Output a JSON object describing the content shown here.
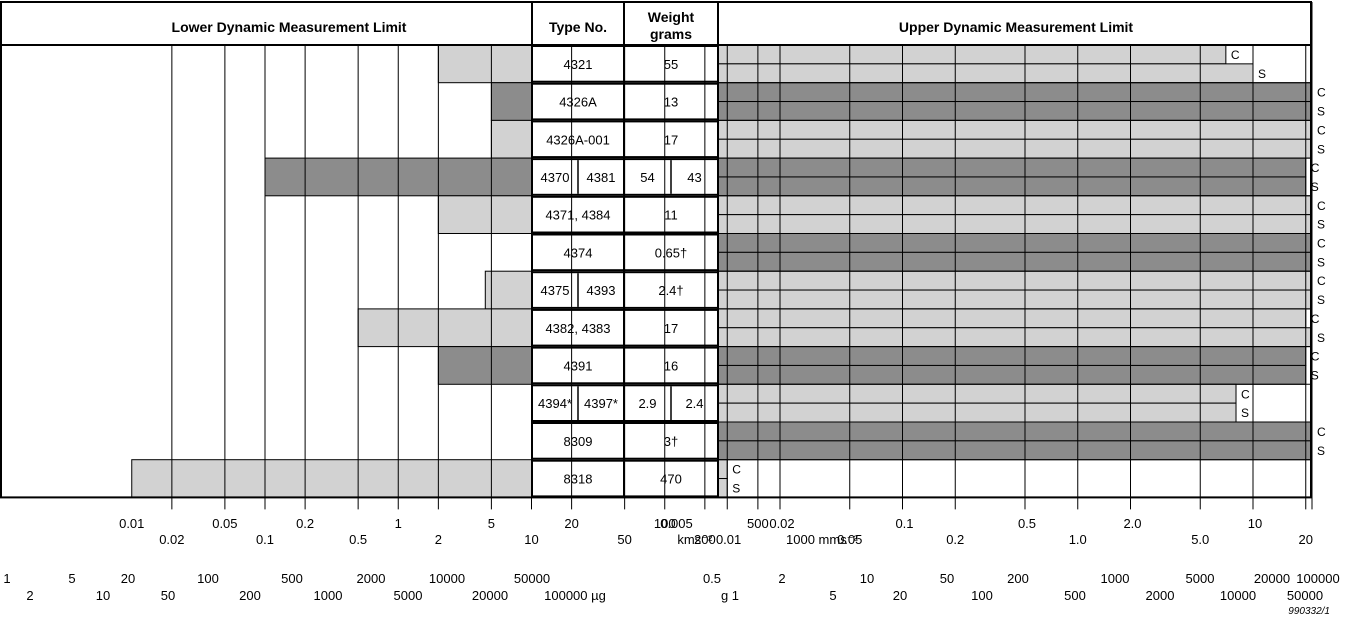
{
  "headers": {
    "lower": "Lower Dynamic Measurement Limit",
    "type": "Type No.",
    "weight_line1": "Weight",
    "weight_line2": "grams",
    "upper": "Upper Dynamic Measurement Limit"
  },
  "colors": {
    "light": "#d2d2d2",
    "dark": "#8c8c8c",
    "line": "#000000"
  },
  "chart_data": {
    "type": "bar",
    "lower_axis": {
      "scale": "log",
      "range": [
        0.01,
        1000
      ],
      "unit": "mms⁻²",
      "ticks_row1": [
        "0.01",
        "0.05",
        "0.1",
        "0.2",
        "0.5",
        "1",
        "2",
        "5",
        "10",
        "20",
        "50",
        "100",
        "200",
        "500",
        "1000 mms⁻²"
      ],
      "ticks_row1_values": [
        0.01,
        0.05,
        0.1,
        0.2,
        0.5,
        1,
        2,
        5,
        10,
        20,
        50,
        100,
        200,
        500,
        1000
      ],
      "ticks_row1_below": [
        false,
        false,
        true,
        false,
        true,
        false,
        true,
        false,
        true,
        false,
        true,
        false,
        true,
        false,
        true
      ],
      "ticks_row1_note": "",
      "ticks_top_labels": [
        "0.01",
        "0.05",
        "0.2",
        "1",
        "5",
        "20",
        "100",
        "500"
      ],
      "ticks_bottom_labels": [
        "0.02",
        "0.1",
        "0.5",
        "2",
        "10",
        "50",
        "200",
        "1000 mms⁻²"
      ],
      "g_top_labels": [
        "1",
        "5",
        "20",
        "100",
        "500",
        "2000",
        "10000",
        "50000"
      ],
      "g_bottom_labels": [
        "2",
        "10",
        "50",
        "200",
        "1000",
        "5000",
        "20000",
        "100000 µg"
      ]
    },
    "upper_axis": {
      "scale": "log",
      "range": [
        0.005,
        1000
      ],
      "unit": "kms⁻²",
      "ticks_top_labels": [
        "0.005",
        "0.02",
        "0.1",
        "0.5",
        "2.0",
        "10",
        "50",
        "200",
        "1000"
      ],
      "ticks_bottom_labels": [
        "kms⁻² 0.01",
        "0.05",
        "0.2",
        "1.0",
        "5.0",
        "20",
        "100",
        "500"
      ],
      "g_top_labels": [
        "0.5",
        "2",
        "10",
        "50",
        "200",
        "1000",
        "5000",
        "20000",
        "100000"
      ],
      "g_bottom_labels": [
        "g  1",
        "5",
        "20",
        "100",
        "500",
        "2000",
        "10000",
        "50000"
      ]
    },
    "figure_code": "990332/1",
    "rows": [
      {
        "type": [
          "4321"
        ],
        "weight": [
          "55"
        ],
        "shade": "light",
        "lower_limit": 2,
        "upper_c": 7,
        "upper_s": 10
      },
      {
        "type": [
          "4326A"
        ],
        "weight": [
          "13"
        ],
        "shade": "dark",
        "lower_limit": 5,
        "upper_c": 50,
        "upper_s": 200
      },
      {
        "type": [
          "4326A-001"
        ],
        "weight": [
          "17"
        ],
        "shade": "light",
        "lower_limit": 5,
        "upper_c": 50,
        "upper_s": 200
      },
      {
        "type": [
          "4370",
          "4381"
        ],
        "weight": [
          "54",
          "43"
        ],
        "shade": "dark",
        "lower_limit": 0.1,
        "upper_c": 20,
        "upper_s": 20
      },
      {
        "type": [
          "4371, 4384"
        ],
        "weight": [
          "11"
        ],
        "shade": "light",
        "lower_limit": 2,
        "upper_c": 60,
        "upper_s": 200
      },
      {
        "type": [
          "4374"
        ],
        "weight": [
          "0.65†"
        ],
        "shade": "dark",
        "lower_limit": 15,
        "upper_c": 60,
        "upper_s": 250
      },
      {
        "type": [
          "4375",
          "4393"
        ],
        "weight": [
          "2.4†"
        ],
        "shade": "light",
        "lower_limit": 4.5,
        "upper_c": 60,
        "upper_s": 250
      },
      {
        "type": [
          "4382, 4383"
        ],
        "weight": [
          "17"
        ],
        "shade": "light",
        "lower_limit": 0.5,
        "upper_c": 20,
        "upper_s": 60
      },
      {
        "type": [
          "4391"
        ],
        "weight": [
          "16"
        ],
        "shade": "dark",
        "lower_limit": 2,
        "upper_c": 20,
        "upper_s": 20
      },
      {
        "type": [
          "4394*",
          "4397*"
        ],
        "weight": [
          "2.9",
          "2.4"
        ],
        "shade": "light",
        "lower_limit": 20,
        "upper_c": 8,
        "upper_s": 8
      },
      {
        "type": [
          "8309"
        ],
        "weight": [
          "3†"
        ],
        "shade": "dark",
        "lower_limit": 200,
        "upper_c": 200,
        "upper_s": 1000
      },
      {
        "type": [
          "8318"
        ],
        "weight": [
          "470"
        ],
        "shade": "light",
        "lower_limit": 0.01,
        "upper_c": 0.01,
        "upper_s": 0.01
      }
    ],
    "c_label": "C",
    "s_label": "S"
  }
}
